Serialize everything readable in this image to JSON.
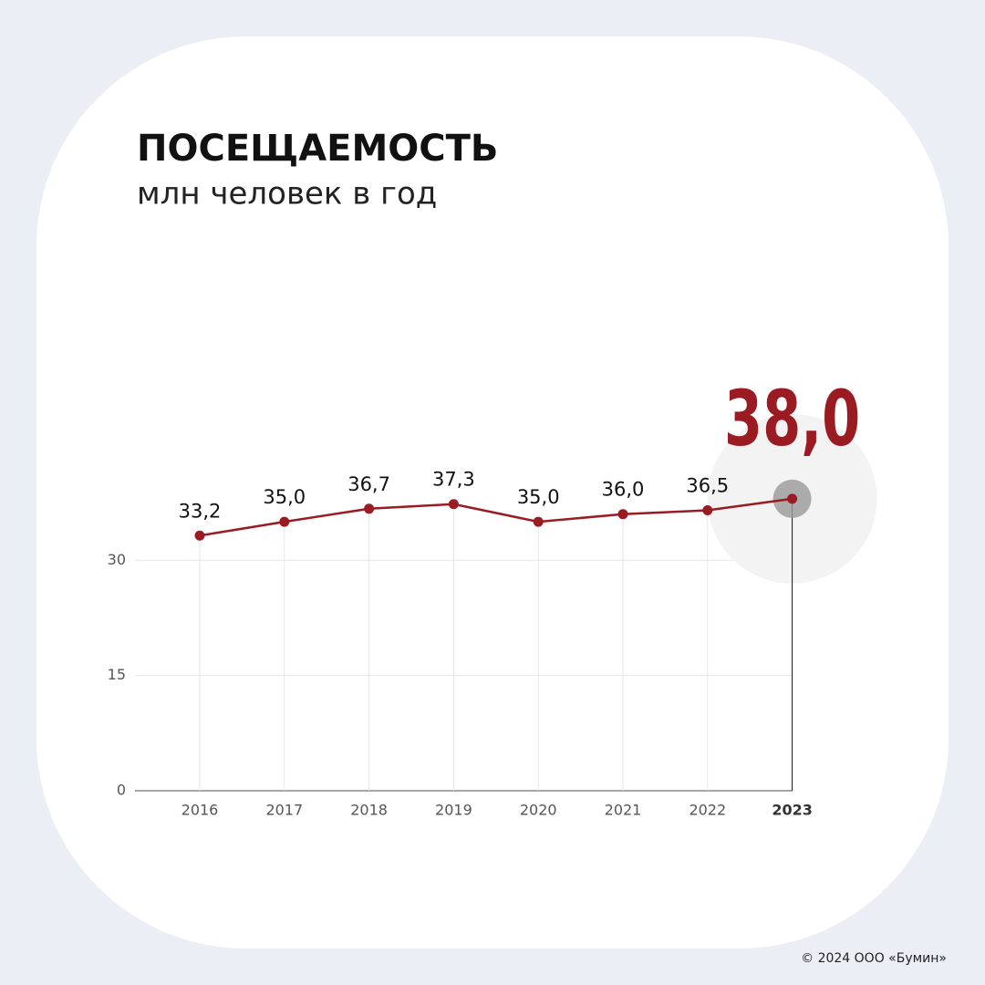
{
  "chart_data": {
    "type": "line",
    "title": "ПОСЕЩАЕМОСТЬ",
    "subtitle": "млн человек в год",
    "categories": [
      "2016",
      "2017",
      "2018",
      "2019",
      "2020",
      "2021",
      "2022",
      "2023"
    ],
    "values": [
      33.2,
      35.0,
      36.7,
      37.3,
      35.0,
      36.0,
      36.5,
      38.0
    ],
    "value_labels": [
      "33,2",
      "35,0",
      "36,7",
      "37,3",
      "35,0",
      "36,0",
      "36,5",
      "38,0"
    ],
    "color": "#9b1b22",
    "ylim": [
      0,
      40
    ],
    "yticks": [
      0,
      15,
      30
    ],
    "grid": true
  },
  "footer": "© 2024 ООО «Бумин»"
}
